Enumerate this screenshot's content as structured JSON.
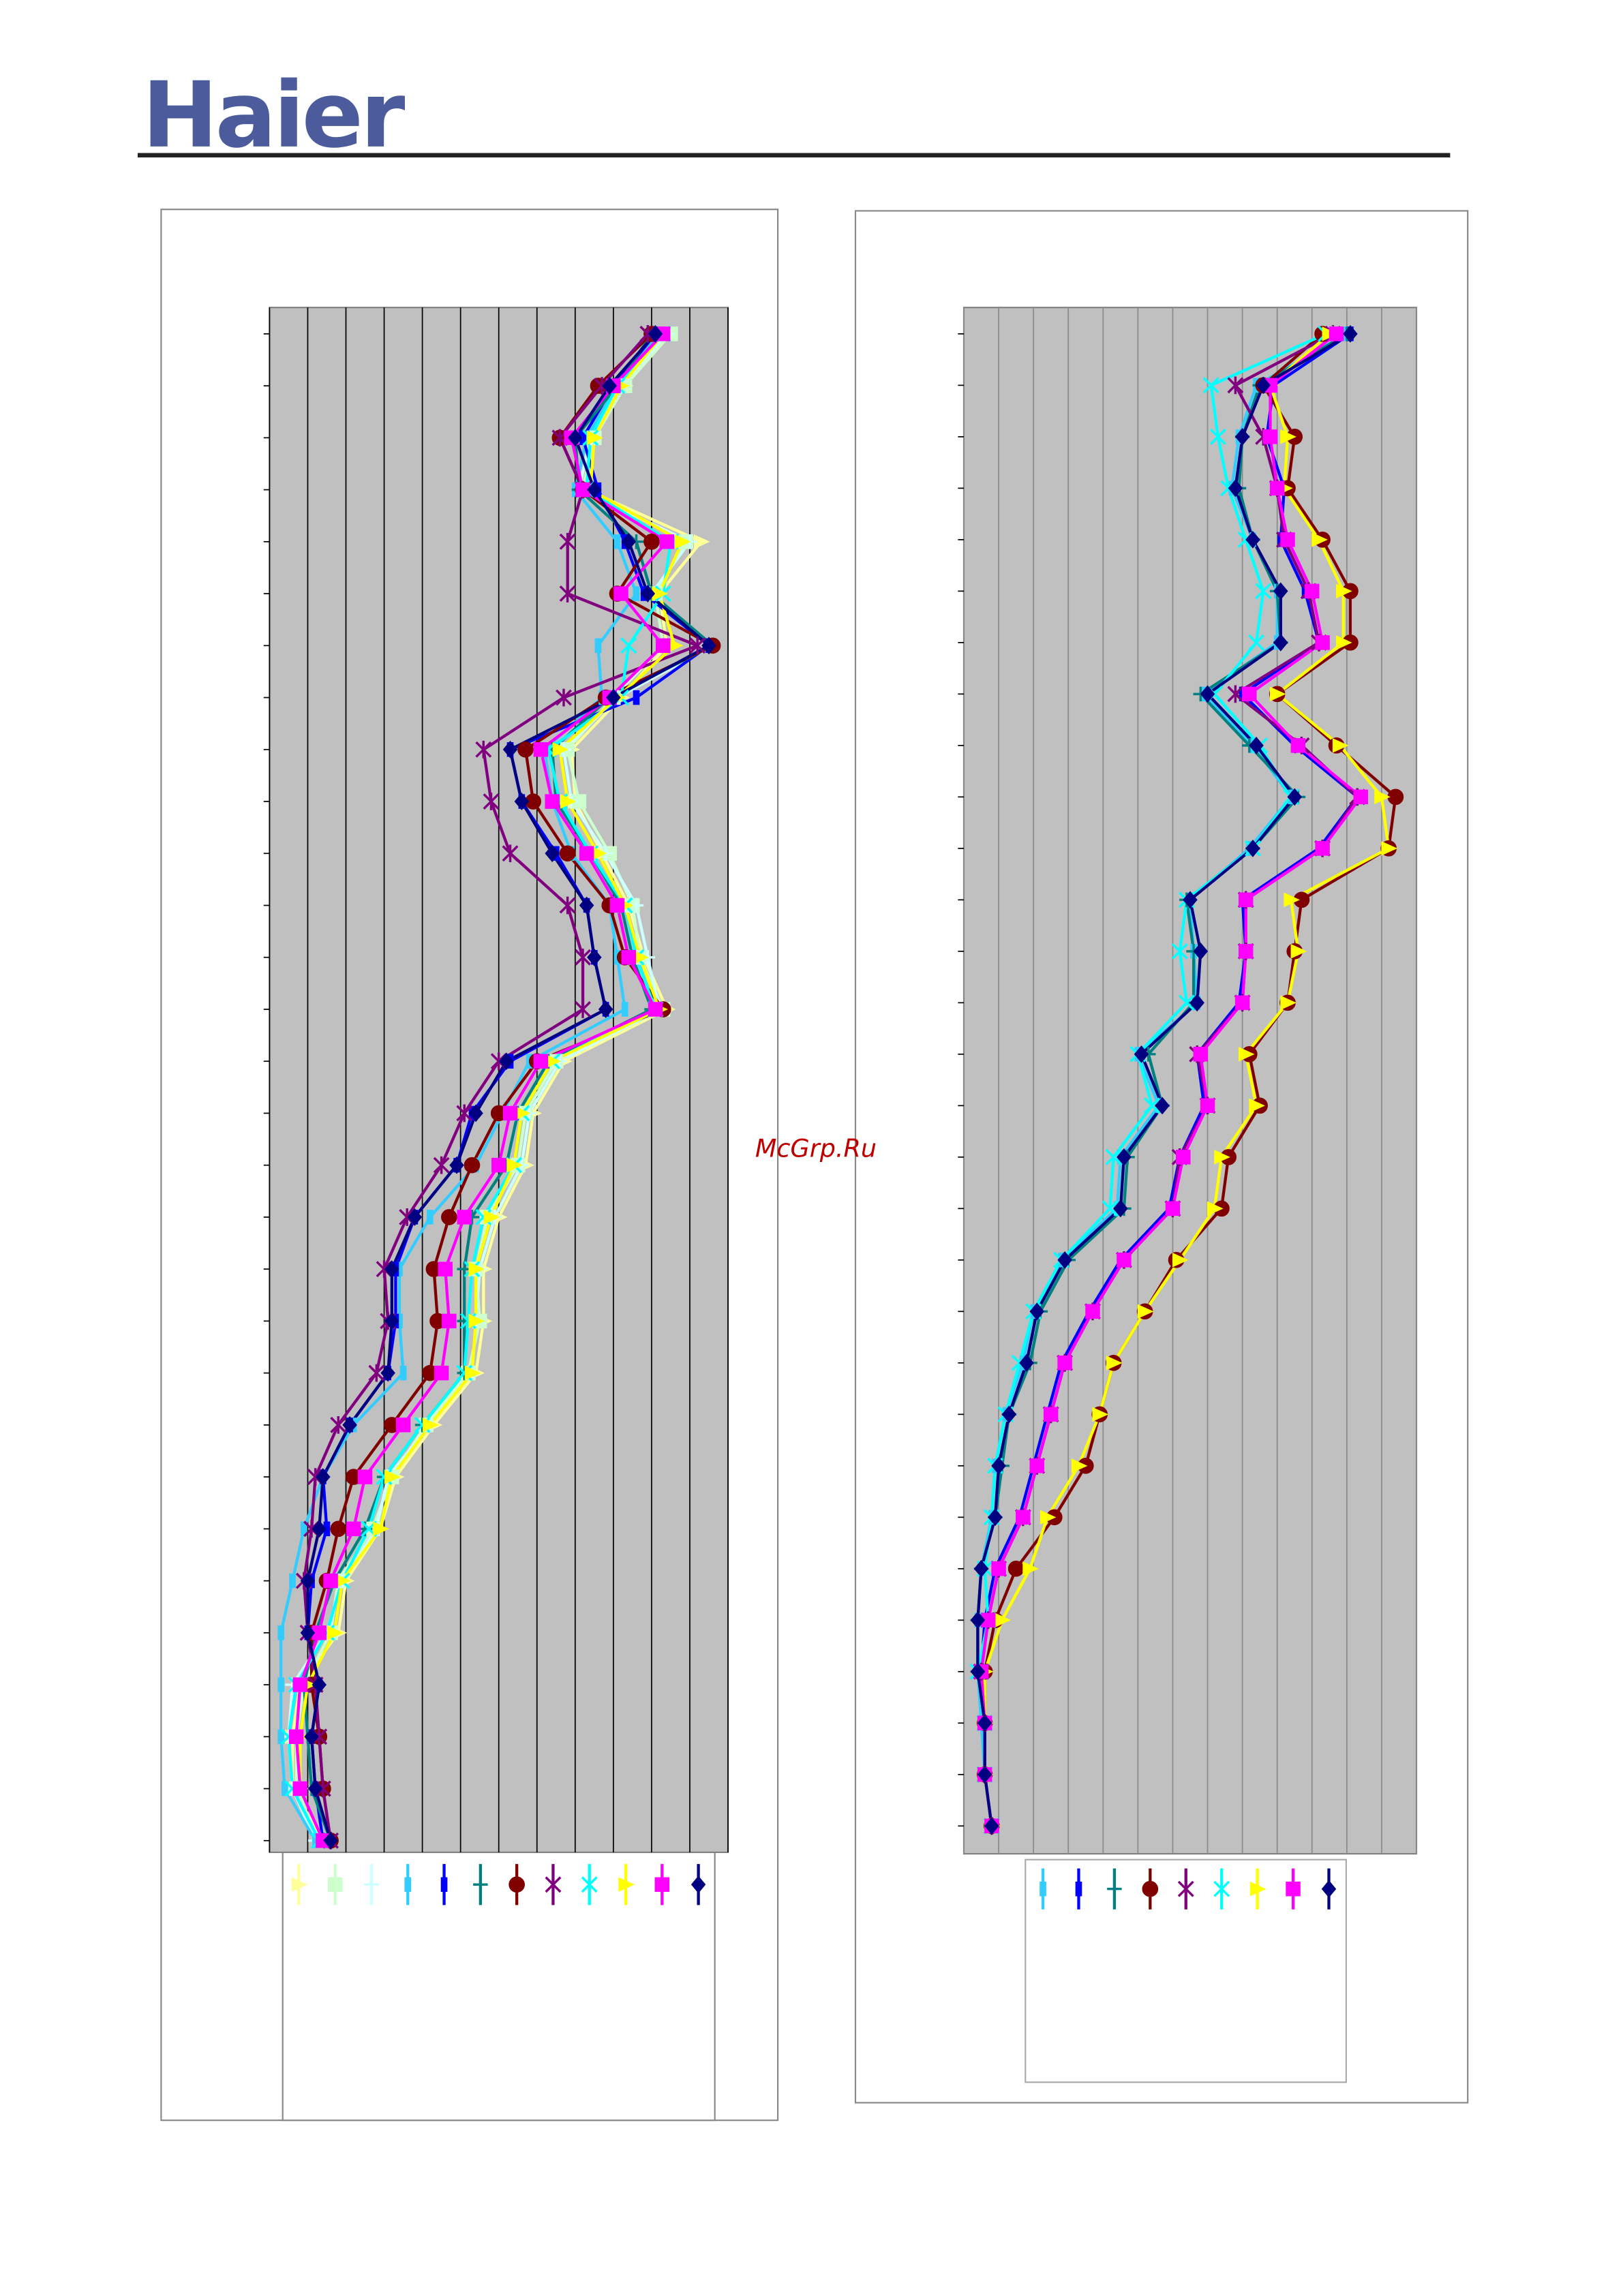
{
  "header": {
    "logo": "Haier"
  },
  "watermark": "McGrp.Ru",
  "chart_data": [
    {
      "type": "line",
      "grid": true,
      "xlim": [
        0,
        12
      ],
      "xticks": [
        0,
        1,
        2,
        3,
        4,
        5,
        6,
        7,
        8,
        9,
        10,
        11,
        12
      ],
      "categories": [
        null,
        null,
        null,
        null,
        null,
        null,
        null,
        null,
        null,
        null,
        null,
        null,
        null,
        null,
        null,
        null,
        null,
        null,
        null,
        null,
        null,
        null,
        null,
        null,
        null,
        null,
        null,
        null,
        null,
        null
      ],
      "series": [
        {
          "color": "#ffff99",
          "marker": "triangle",
          "values": [
            10.4,
            9.3,
            8.5,
            8.3,
            11.3,
            10.2,
            10.4,
            9.2,
            7.9,
            8.0,
            8.7,
            9.4,
            9.8,
            10.4,
            7.7,
            6.9,
            6.7,
            6.0,
            5.6,
            5.6,
            5.4,
            4.3,
            3.3,
            2.9,
            2.0,
            1.8,
            0.8,
            0.6,
            0.6,
            1.4
          ]
        },
        {
          "color": "#ccffcc",
          "marker": "square",
          "values": [
            10.5,
            9.3,
            8.5,
            8.2,
            10.9,
            10.1,
            10.3,
            9.0,
            7.8,
            8.1,
            8.9,
            9.5,
            9.7,
            10.3,
            7.5,
            6.7,
            6.5,
            5.7,
            5.4,
            5.5,
            5.2,
            4.1,
            3.2,
            2.7,
            1.8,
            1.6,
            0.9,
            0.7,
            0.7,
            1.3
          ]
        },
        {
          "color": "#ccffff",
          "marker": "plus",
          "values": [
            10.4,
            9.2,
            8.4,
            8.1,
            11.0,
            10.0,
            11.6,
            9.1,
            7.7,
            7.9,
            8.8,
            9.6,
            9.9,
            10.2,
            7.6,
            6.8,
            6.6,
            5.9,
            5.5,
            5.4,
            5.3,
            4.2,
            3.1,
            2.8,
            1.9,
            1.5,
            0.6,
            0.5,
            0.6,
            1.2
          ]
        },
        {
          "color": "#33ccff",
          "marker": "bar",
          "values": [
            10.2,
            9.1,
            8.3,
            8.0,
            9.1,
            9.6,
            8.6,
            8.7,
            7.2,
            7.4,
            7.9,
            8.9,
            9.1,
            9.3,
            6.8,
            6.1,
            5.4,
            4.2,
            3.4,
            3.4,
            3.5,
            2.2,
            1.4,
            0.9,
            0.6,
            0.3,
            0.3,
            0.3,
            0.4,
            1.2
          ]
        },
        {
          "color": "#0000ff",
          "marker": "bar",
          "values": [
            10.1,
            9.0,
            8.2,
            8.6,
            9.3,
            9.8,
            11.5,
            9.6,
            6.3,
            6.6,
            7.5,
            8.3,
            8.5,
            8.8,
            6.3,
            5.3,
            4.9,
            3.8,
            3.3,
            3.3,
            3.1,
            2.1,
            1.4,
            1.5,
            1.1,
            1.0,
            1.3,
            1.1,
            1.2,
            1.4
          ]
        },
        {
          "color": "#008080",
          "marker": "plus",
          "values": [
            10.0,
            9.1,
            8.0,
            8.1,
            9.6,
            10.0,
            11.6,
            8.9,
            7.4,
            7.5,
            8.4,
            9.2,
            9.5,
            10.0,
            7.3,
            6.5,
            6.2,
            5.3,
            5.1,
            5.1,
            5.1,
            4.0,
            3.0,
            2.5,
            1.7,
            1.2,
            0.9,
            1.0,
            1.1,
            1.6
          ]
        },
        {
          "color": "#800000",
          "marker": "circle",
          "values": [
            10.0,
            8.6,
            7.6,
            8.2,
            10.0,
            9.1,
            11.6,
            8.8,
            6.7,
            6.9,
            7.8,
            8.9,
            9.3,
            10.3,
            7.0,
            6.0,
            5.3,
            4.7,
            4.3,
            4.4,
            4.2,
            3.2,
            2.2,
            1.8,
            1.5,
            1.1,
            1.1,
            1.3,
            1.4,
            1.6
          ]
        },
        {
          "color": "#800080",
          "marker": "star",
          "values": [
            9.9,
            8.7,
            7.6,
            8.2,
            7.8,
            7.8,
            11.2,
            7.7,
            5.6,
            5.8,
            6.3,
            7.8,
            8.2,
            8.2,
            6.0,
            5.1,
            4.5,
            3.6,
            3.0,
            3.1,
            2.8,
            1.8,
            1.2,
            1.1,
            0.9,
            1.0,
            1.2,
            1.3,
            1.4,
            1.6
          ]
        },
        {
          "color": "#00ffff",
          "marker": "x",
          "values": [
            10.3,
            9.1,
            8.4,
            8.3,
            10.5,
            10.3,
            9.4,
            9.2,
            7.3,
            7.6,
            8.4,
            9.3,
            9.6,
            10.1,
            7.4,
            6.6,
            6.4,
            5.6,
            5.3,
            5.2,
            5.1,
            4.0,
            3.0,
            2.6,
            1.9,
            1.5,
            0.7,
            0.5,
            0.6,
            1.3
          ]
        },
        {
          "color": "#ffff00",
          "marker": "triangle",
          "values": [
            10.3,
            9.2,
            8.5,
            8.4,
            10.8,
            10.2,
            10.6,
            9.1,
            7.6,
            7.8,
            8.6,
            9.3,
            9.7,
            10.2,
            7.4,
            6.6,
            6.4,
            5.8,
            5.4,
            5.4,
            5.3,
            4.2,
            3.2,
            2.9,
            1.9,
            1.7,
            1.0,
            0.8,
            0.8,
            1.4
          ]
        },
        {
          "color": "#ff00ff",
          "marker": "square",
          "values": [
            10.3,
            9.0,
            7.9,
            8.2,
            10.4,
            9.2,
            10.3,
            8.9,
            7.1,
            7.4,
            8.3,
            9.1,
            9.4,
            10.1,
            7.1,
            6.3,
            6.0,
            5.1,
            4.6,
            4.7,
            4.5,
            3.5,
            2.5,
            2.2,
            1.6,
            1.3,
            0.8,
            0.7,
            0.8,
            1.4
          ]
        },
        {
          "color": "#000080",
          "marker": "diamond",
          "values": [
            10.1,
            8.9,
            8.0,
            8.5,
            9.4,
            9.9,
            11.5,
            9.0,
            6.3,
            6.6,
            7.4,
            8.3,
            8.5,
            8.8,
            6.2,
            5.4,
            4.9,
            3.8,
            3.2,
            3.2,
            3.1,
            2.1,
            1.4,
            1.3,
            1.0,
            1.0,
            1.3,
            1.1,
            1.2,
            1.6
          ]
        }
      ]
    },
    {
      "type": "line",
      "grid": true,
      "xlim": [
        0,
        13
      ],
      "xticks": [
        0,
        1,
        2,
        3,
        4,
        5,
        6,
        7,
        8,
        9,
        10,
        11,
        12,
        13
      ],
      "categories": [
        null,
        null,
        null,
        null,
        null,
        null,
        null,
        null,
        null,
        null,
        null,
        null,
        null,
        null,
        null,
        null,
        null,
        null,
        null,
        null,
        null,
        null,
        null,
        null,
        null,
        null,
        null,
        null,
        null,
        null
      ],
      "series": [
        {
          "color": "#33ccff",
          "marker": "bar",
          "values": [
            11.0,
            8.4,
            7.9,
            7.7,
            8.3,
            9.0,
            9.0,
            6.9,
            8.3,
            9.4,
            8.2,
            6.5,
            6.6,
            6.7,
            5.0,
            5.6,
            4.5,
            4.4,
            2.8,
            2.0,
            1.7,
            1.2,
            0.9,
            0.8,
            0.5,
            0.4,
            0.4,
            0.5,
            0.6,
            0.8
          ]
        },
        {
          "color": "#0000ff",
          "marker": "bar",
          "values": [
            11.1,
            8.9,
            8.7,
            9.2,
            9.1,
            9.8,
            10.2,
            8.0,
            9.5,
            11.3,
            10.2,
            8.0,
            8.1,
            7.9,
            6.7,
            6.9,
            6.2,
            5.9,
            4.5,
            3.6,
            2.8,
            2.4,
            2.0,
            1.6,
            0.9,
            0.6,
            0.5,
            0.6,
            0.6,
            0.8
          ]
        },
        {
          "color": "#008080",
          "marker": "plus",
          "values": [
            11.0,
            8.5,
            8.0,
            7.9,
            8.3,
            9.0,
            9.1,
            6.8,
            8.2,
            9.6,
            8.3,
            6.4,
            6.6,
            6.6,
            5.3,
            5.7,
            4.7,
            4.6,
            3.0,
            2.2,
            1.9,
            1.3,
            1.1,
            0.9,
            0.5,
            0.4,
            0.4,
            0.6,
            0.6,
            0.8
          ]
        },
        {
          "color": "#800000",
          "marker": "circle",
          "values": [
            10.3,
            8.6,
            9.5,
            9.3,
            10.3,
            11.1,
            11.1,
            9.0,
            10.7,
            12.4,
            12.2,
            9.7,
            9.5,
            9.3,
            8.2,
            8.5,
            7.6,
            7.4,
            6.1,
            5.2,
            4.3,
            3.9,
            3.5,
            2.6,
            1.5,
            0.9,
            0.6,
            0.6,
            0.6,
            0.8
          ]
        },
        {
          "color": "#800080",
          "marker": "star",
          "values": [
            10.6,
            7.8,
            8.6,
            9.0,
            9.2,
            9.9,
            10.2,
            7.8,
            9.7,
            11.3,
            10.3,
            8.1,
            8.1,
            8.0,
            6.7,
            7.0,
            6.2,
            6.0,
            4.6,
            3.7,
            2.9,
            2.5,
            2.1,
            1.7,
            1.0,
            0.7,
            0.5,
            0.6,
            0.6,
            0.8
          ]
        },
        {
          "color": "#00ffff",
          "marker": "x",
          "values": [
            10.4,
            7.1,
            7.3,
            7.6,
            8.1,
            8.6,
            8.4,
            7.2,
            8.5,
            9.4,
            8.3,
            6.4,
            6.2,
            6.4,
            5.0,
            5.4,
            4.3,
            4.2,
            2.8,
            2.0,
            1.6,
            1.2,
            0.9,
            0.8,
            0.6,
            0.7,
            0.4,
            0.6,
            0.6,
            0.8
          ]
        },
        {
          "color": "#ffff00",
          "marker": "triangle",
          "values": [
            10.5,
            8.8,
            9.3,
            9.2,
            10.2,
            10.9,
            10.9,
            9.0,
            10.8,
            12.0,
            12.2,
            9.4,
            9.6,
            9.3,
            8.1,
            8.4,
            7.4,
            7.2,
            6.2,
            5.2,
            4.3,
            3.9,
            3.3,
            2.4,
            1.9,
            1.1,
            0.6,
            0.6,
            0.6,
            0.8
          ]
        },
        {
          "color": "#ff00ff",
          "marker": "square",
          "values": [
            10.7,
            8.8,
            8.8,
            9.0,
            9.3,
            10.0,
            10.3,
            8.2,
            9.6,
            11.4,
            10.3,
            8.1,
            8.1,
            8.0,
            6.8,
            7.0,
            6.3,
            6.0,
            4.6,
            3.7,
            2.9,
            2.5,
            2.1,
            1.7,
            1.0,
            0.7,
            0.5,
            0.6,
            0.6,
            0.8
          ]
        },
        {
          "color": "#000080",
          "marker": "diamond",
          "values": [
            11.1,
            8.6,
            8.0,
            7.8,
            8.3,
            9.1,
            9.1,
            7.0,
            8.4,
            9.5,
            8.3,
            6.5,
            6.8,
            6.7,
            5.1,
            5.7,
            4.6,
            4.5,
            2.9,
            2.1,
            1.8,
            1.3,
            1.0,
            0.9,
            0.5,
            0.4,
            0.4,
            0.6,
            0.6,
            0.8
          ]
        }
      ]
    }
  ]
}
